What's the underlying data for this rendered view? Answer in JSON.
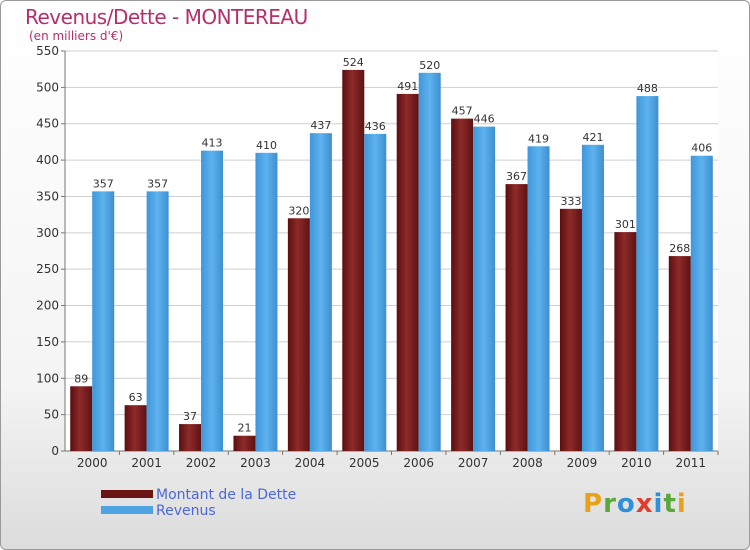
{
  "header": {
    "title": "Revenus/Dette - MONTEREAU",
    "subtitle": "(en milliers d'€)"
  },
  "logo": {
    "letters": [
      "P",
      "r",
      "o",
      "x",
      "i",
      "t",
      "i"
    ],
    "colors": [
      "#e8a21a",
      "#59a83b",
      "#2f8fd8",
      "#e53b2c",
      "#2f8fd8",
      "#59a83b",
      "#e8a21a"
    ]
  },
  "chart_data": {
    "type": "bar",
    "title": "Revenus/Dette - MONTEREAU",
    "ylabel": "(en milliers d'€)",
    "xlabel": "",
    "categories": [
      "2000",
      "2001",
      "2002",
      "2003",
      "2004",
      "2005",
      "2006",
      "2007",
      "2008",
      "2009",
      "2010",
      "2011"
    ],
    "series": [
      {
        "name": "Montant de la Dette",
        "color": "#7a1e1e",
        "values": [
          89,
          63,
          37,
          21,
          320,
          524,
          491,
          457,
          367,
          333,
          301,
          268
        ]
      },
      {
        "name": "Revenus",
        "color": "#4ea3e3",
        "values": [
          357,
          357,
          413,
          410,
          437,
          436,
          520,
          446,
          419,
          421,
          488,
          406
        ]
      }
    ],
    "ylim": [
      0,
      550
    ],
    "yticks": [
      0,
      50,
      100,
      150,
      200,
      250,
      300,
      350,
      400,
      450,
      500,
      550
    ],
    "grid": true,
    "legend_position": "bottom-left"
  }
}
